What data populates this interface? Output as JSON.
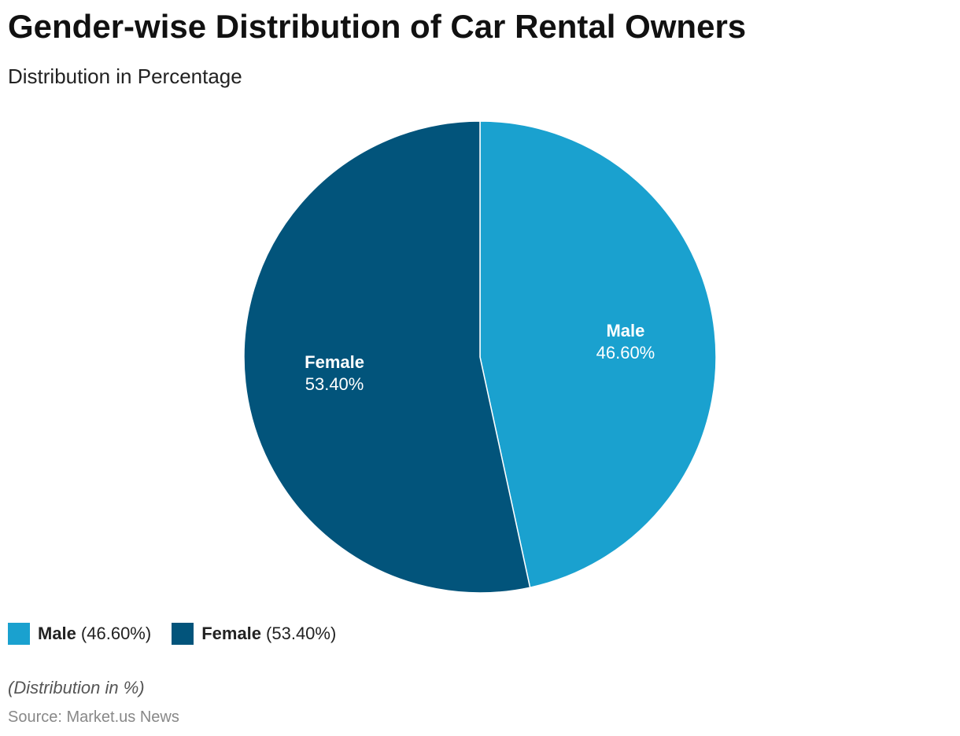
{
  "chart_data": {
    "type": "pie",
    "title": "Gender-wise Distribution of Car Rental Owners",
    "subtitle": "Distribution in Percentage",
    "slices": [
      {
        "label": "Male",
        "value": 46.6,
        "display": "46.60%",
        "legend_value": "(46.60%)",
        "color": "#1aa1cf"
      },
      {
        "label": "Female",
        "value": 53.4,
        "display": "53.40%",
        "legend_value": "(53.40%)",
        "color": "#02547b"
      }
    ],
    "start_angle_deg": 0,
    "direction": "clockwise",
    "legend_position": "bottom-left",
    "footnote": "(Distribution in %)",
    "source": "Source: Market.us News"
  }
}
